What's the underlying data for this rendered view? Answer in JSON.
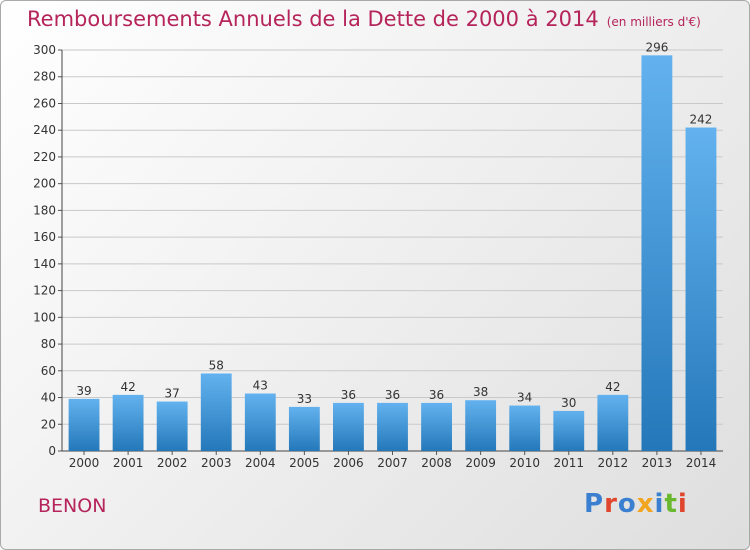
{
  "header": {
    "title": "Remboursements Annuels de la Dette de 2000 à 2014",
    "unit": "(en milliers d'€)"
  },
  "footer": {
    "commune": "BENON",
    "brand": "Proxiti",
    "brand_colors": [
      "#3a7fd0",
      "#e0462d",
      "#3a7fd0",
      "#f2a51f",
      "#3a7fd0",
      "#6ab82e",
      "#e0462d"
    ]
  },
  "colors": {
    "bar_top": "#63b2ef",
    "bar_bottom": "#2478b9",
    "title": "#b5245a",
    "grid": "#c9c9c9"
  },
  "chart_data": {
    "type": "bar",
    "title": "Remboursements Annuels de la Dette de 2000 à 2014",
    "categories": [
      "2000",
      "2001",
      "2002",
      "2003",
      "2004",
      "2005",
      "2006",
      "2007",
      "2008",
      "2009",
      "2010",
      "2011",
      "2012",
      "2013",
      "2014"
    ],
    "values": [
      39,
      42,
      37,
      58,
      43,
      33,
      36,
      36,
      36,
      38,
      34,
      30,
      42,
      296,
      242
    ],
    "ylim": [
      0,
      300
    ],
    "yticks": [
      0,
      20,
      40,
      60,
      80,
      100,
      120,
      140,
      160,
      180,
      200,
      220,
      240,
      260,
      280,
      300
    ],
    "grid": true,
    "data_labels": true
  }
}
